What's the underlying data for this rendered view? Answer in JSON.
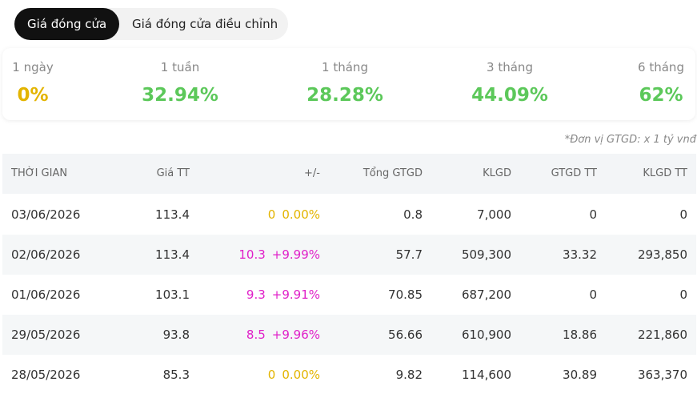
{
  "tabs": [
    {
      "label": "Giá đóng cửa",
      "active": true
    },
    {
      "label": "Giá đóng cửa điều chỉnh",
      "active": false
    }
  ],
  "performance": [
    {
      "label": "1 ngày",
      "value": "0%",
      "color": "#e3b400"
    },
    {
      "label": "1 tuần",
      "value": "32.94%",
      "color": "#5cc85a"
    },
    {
      "label": "1 tháng",
      "value": "28.28%",
      "color": "#5cc85a"
    },
    {
      "label": "3 tháng",
      "value": "44.09%",
      "color": "#5cc85a"
    },
    {
      "label": "6 tháng",
      "value": "62%",
      "color": "#5cc85a"
    }
  ],
  "note": "*Đơn vị GTGD: x 1 tỷ vnđ",
  "table": {
    "headers": [
      "THỜI GIAN",
      "Giá TT",
      "+/-",
      "Tổng GTGD",
      "KLGD",
      "GTGD TT",
      "KLGD TT"
    ],
    "rows": [
      {
        "date": "03/06/2026",
        "price": "113.4",
        "change": "0",
        "percent": "0.00%",
        "color": "#e3b400",
        "total": "0.8",
        "volume": "7,000",
        "deal_value": "0",
        "deal_volume": "0"
      },
      {
        "date": "02/06/2026",
        "price": "113.4",
        "change": "10.3",
        "percent": "+9.99%",
        "color": "#e020c8",
        "total": "57.7",
        "volume": "509,300",
        "deal_value": "33.32",
        "deal_volume": "293,850"
      },
      {
        "date": "01/06/2026",
        "price": "103.1",
        "change": "9.3",
        "percent": "+9.91%",
        "color": "#e020c8",
        "total": "70.85",
        "volume": "687,200",
        "deal_value": "0",
        "deal_volume": "0"
      },
      {
        "date": "29/05/2026",
        "price": "93.8",
        "change": "8.5",
        "percent": "+9.96%",
        "color": "#e020c8",
        "total": "56.66",
        "volume": "610,900",
        "deal_value": "18.86",
        "deal_volume": "221,860"
      },
      {
        "date": "28/05/2026",
        "price": "85.3",
        "change": "0",
        "percent": "0.00%",
        "color": "#e3b400",
        "total": "9.82",
        "volume": "114,600",
        "deal_value": "30.89",
        "deal_volume": "363,370"
      }
    ]
  }
}
